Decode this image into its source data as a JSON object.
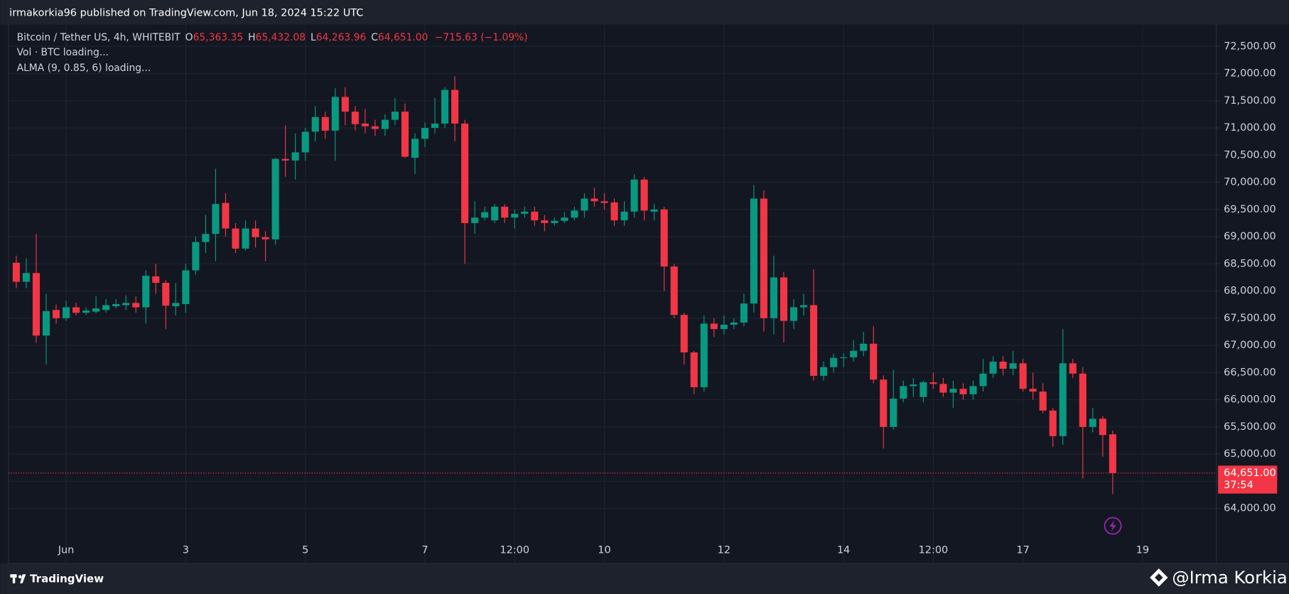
{
  "header": {
    "published": "irmakorkia96 published on TradingView.com, Jun 18, 2024 15:22 UTC"
  },
  "footer": {
    "brand": "TradingView",
    "author": "@Irma Korkia"
  },
  "chart_data": {
    "type": "candlestick",
    "title": "Bitcoin / Tether US, 4h, WHITEBIT",
    "legend": {
      "items": [
        {
          "label": "O",
          "value": "65,363.35"
        },
        {
          "label": "H",
          "value": "65,432.08"
        },
        {
          "label": "L",
          "value": "64,263.96"
        },
        {
          "label": "C",
          "value": "64,651.00"
        }
      ],
      "change": "−715.63 (−1.09%)"
    },
    "indicators": [
      "Vol · BTC loading...",
      "ALMA (9, 0.85, 6) loading..."
    ],
    "up_color": "#089981",
    "down_color": "#f23645",
    "grid": true,
    "open": [
      68520,
      68170,
      68330,
      67180,
      67650,
      67500,
      67700,
      67600,
      67620,
      67650,
      67720,
      67740,
      67780,
      67700,
      68270,
      68150,
      67720,
      67760,
      68380,
      68900,
      69050,
      69620,
      69150,
      68780,
      69150,
      68990,
      68950,
      70430,
      70400,
      70550,
      70930,
      71200,
      70950,
      71570,
      71300,
      71080,
      71030,
      70980,
      71150,
      71300,
      70450,
      70800,
      71000,
      71080,
      71700,
      71080,
      69250,
      69350,
      69300,
      69550,
      69350,
      69420,
      69460,
      69300,
      69250,
      69290,
      69350,
      69480,
      69700,
      69650,
      69630,
      69300,
      69460,
      70050,
      69460,
      69500,
      68450,
      67560,
      66870,
      66230,
      67400,
      67300,
      67380,
      67420,
      67770,
      69700,
      67500,
      68250,
      67450,
      67700,
      67740,
      66440,
      66600,
      66770,
      66780,
      66900,
      67030,
      66370,
      65500,
      66020,
      66250,
      66050,
      66320,
      66290,
      66130,
      66200,
      66100,
      66250,
      66480,
      66700,
      66570,
      66670,
      66200,
      66150,
      65800,
      65330,
      66670,
      66480,
      65500,
      65650,
      65363.35
    ],
    "high": [
      68650,
      68600,
      69050,
      67950,
      67750,
      67820,
      67780,
      67700,
      67900,
      67850,
      67850,
      67920,
      67900,
      68380,
      68500,
      68200,
      68150,
      68500,
      69000,
      69400,
      70250,
      69800,
      69250,
      69300,
      69300,
      69100,
      70450,
      71050,
      70900,
      71000,
      71400,
      71300,
      71730,
      71750,
      71400,
      71350,
      71150,
      71250,
      71550,
      71450,
      70900,
      71100,
      71550,
      71750,
      71950,
      71150,
      69650,
      69550,
      69600,
      69600,
      69500,
      69550,
      69550,
      69400,
      69350,
      69450,
      69550,
      69800,
      69900,
      69800,
      69700,
      69650,
      70150,
      70100,
      69600,
      69550,
      68500,
      67600,
      66900,
      67550,
      67500,
      67550,
      67500,
      67950,
      69950,
      69850,
      68650,
      68350,
      67850,
      67950,
      68400,
      66700,
      66850,
      66850,
      67100,
      67250,
      67350,
      66450,
      66550,
      66350,
      66400,
      66350,
      66500,
      66400,
      66350,
      66300,
      66350,
      66750,
      66800,
      66800,
      66900,
      66750,
      66500,
      66300,
      65850,
      67300,
      66750,
      66600,
      65850,
      65700,
      65432.08
    ],
    "low": [
      68050,
      68050,
      67050,
      66650,
      67400,
      67450,
      67550,
      67560,
      67580,
      67600,
      67680,
      67650,
      67600,
      67400,
      67950,
      67300,
      67550,
      67600,
      68300,
      68700,
      68550,
      69000,
      68700,
      68750,
      68800,
      68550,
      68850,
      70100,
      70050,
      70400,
      70750,
      70800,
      70400,
      71050,
      70950,
      70900,
      70850,
      70850,
      71050,
      70450,
      70150,
      70650,
      70900,
      71000,
      70750,
      68500,
      69050,
      69300,
      69250,
      69250,
      69150,
      69350,
      69200,
      69100,
      69200,
      69250,
      69300,
      69350,
      69550,
      69500,
      69200,
      69200,
      69350,
      69300,
      69300,
      68000,
      67500,
      66650,
      66100,
      66150,
      67150,
      67200,
      67300,
      67350,
      67600,
      67250,
      67200,
      67050,
      67300,
      67550,
      66350,
      66350,
      66500,
      66600,
      66700,
      66800,
      66300,
      65100,
      65450,
      65950,
      66050,
      65950,
      66200,
      66050,
      65850,
      66000,
      66000,
      66150,
      66400,
      66450,
      66450,
      66150,
      66000,
      65750,
      65130,
      65170,
      66400,
      64550,
      65400,
      64950,
      64263.96
    ],
    "close": [
      68170,
      68330,
      67180,
      67630,
      67500,
      67700,
      67600,
      67640,
      67680,
      67740,
      67760,
      67780,
      67700,
      68280,
      68150,
      67730,
      67780,
      68380,
      68900,
      69050,
      69600,
      69150,
      68780,
      69150,
      68990,
      68950,
      70430,
      70400,
      70550,
      70930,
      71200,
      70950,
      71570,
      71300,
      71070,
      71030,
      70980,
      71150,
      71300,
      70470,
      70800,
      71000,
      71080,
      71700,
      71080,
      69250,
      69350,
      69450,
      69550,
      69350,
      69420,
      69460,
      69300,
      69250,
      69290,
      69350,
      69480,
      69700,
      69650,
      69620,
      69300,
      69460,
      70050,
      69480,
      69500,
      68450,
      67560,
      66870,
      66230,
      67400,
      67300,
      67380,
      67420,
      67770,
      69700,
      67500,
      68250,
      67450,
      67700,
      67740,
      66440,
      66600,
      66770,
      66780,
      66900,
      67030,
      66370,
      65500,
      66020,
      66250,
      66280,
      66320,
      66290,
      66130,
      66200,
      66100,
      66250,
      66480,
      66700,
      66570,
      66670,
      66200,
      66150,
      65800,
      65330,
      66670,
      66480,
      65500,
      65650,
      65350,
      64651
    ],
    "xlim": [
      -1.6,
      120.4
    ],
    "xticks": [
      {
        "value": 5,
        "label": "Jun"
      },
      {
        "value": 17,
        "label": "3"
      },
      {
        "value": 29,
        "label": "5"
      },
      {
        "value": 41,
        "label": "7"
      },
      {
        "value": 50,
        "label": "12:00"
      },
      {
        "value": 59,
        "label": "10"
      },
      {
        "value": 71,
        "label": "12"
      },
      {
        "value": 83,
        "label": "14"
      },
      {
        "value": 92,
        "label": "12:00"
      },
      {
        "value": 101,
        "label": "17"
      },
      {
        "value": 113,
        "label": "19"
      }
    ],
    "ylim": [
      63000,
      72900
    ],
    "yticks": [
      {
        "value": 64000,
        "label": "64,000.00"
      },
      {
        "value": 64500,
        "label": "64,500.00"
      },
      {
        "value": 65000,
        "label": "65,000.00"
      },
      {
        "value": 65500,
        "label": "65,500.00"
      },
      {
        "value": 66000,
        "label": "66,000.00"
      },
      {
        "value": 66500,
        "label": "66,500.00"
      },
      {
        "value": 67000,
        "label": "67,000.00"
      },
      {
        "value": 67500,
        "label": "67,500.00"
      },
      {
        "value": 68000,
        "label": "68,000.00"
      },
      {
        "value": 68500,
        "label": "68,500.00"
      },
      {
        "value": 69000,
        "label": "69,000.00"
      },
      {
        "value": 69500,
        "label": "69,500.00"
      },
      {
        "value": 70000,
        "label": "70,000.00"
      },
      {
        "value": 70500,
        "label": "70,500.00"
      },
      {
        "value": 71000,
        "label": "71,000.00"
      },
      {
        "value": 71500,
        "label": "71,500.00"
      },
      {
        "value": 72000,
        "label": "72,000.00"
      },
      {
        "value": 72500,
        "label": "72,500.00"
      }
    ],
    "last_price": {
      "value": 64651,
      "label": "64,651.00",
      "countdown": "37:54"
    }
  }
}
